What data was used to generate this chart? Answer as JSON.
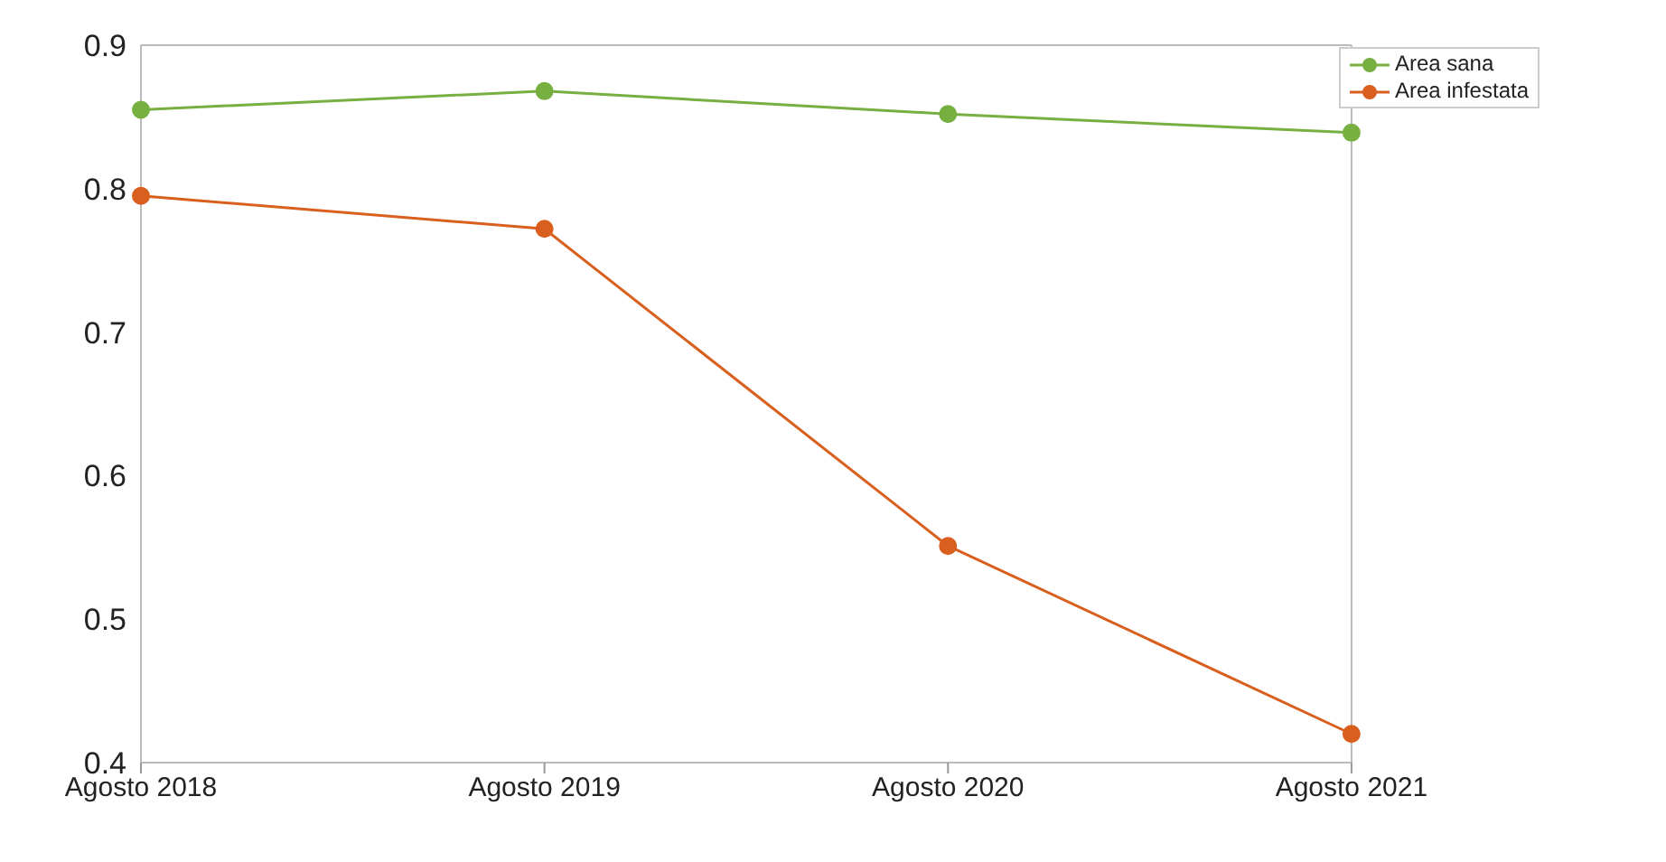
{
  "chart_data": {
    "type": "line",
    "categories": [
      "Agosto 2018",
      "Agosto 2019",
      "Agosto 2020",
      "Agosto 2021"
    ],
    "series": [
      {
        "name": "Area sana",
        "color": "#77b041",
        "values": [
          0.855,
          0.868,
          0.852,
          0.839
        ]
      },
      {
        "name": "Area infestata",
        "color": "#d95f1e",
        "values": [
          0.795,
          0.772,
          0.551,
          0.42
        ]
      }
    ],
    "ylim": [
      0.4,
      0.9
    ],
    "yticks": [
      0.4,
      0.5,
      0.6,
      0.7,
      0.8,
      0.9
    ],
    "grid": false,
    "legend": "top right",
    "marker": "circle",
    "line_style": "solid"
  }
}
